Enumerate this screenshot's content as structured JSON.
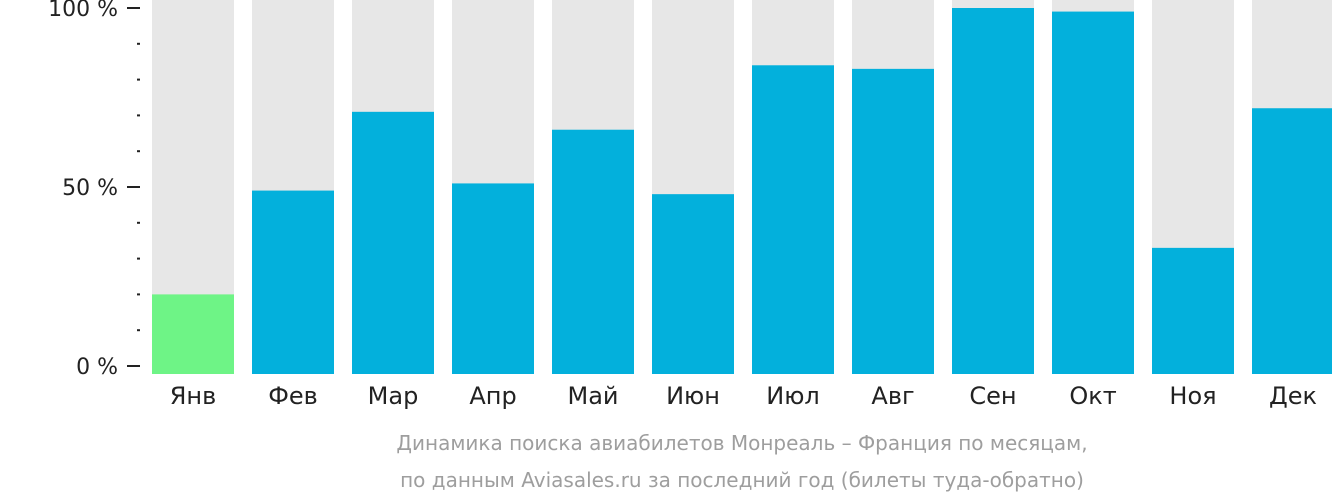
{
  "chart_data": {
    "type": "bar",
    "categories": [
      "Янв",
      "Фев",
      "Мар",
      "Апр",
      "Май",
      "Июн",
      "Июл",
      "Авг",
      "Сен",
      "Окт",
      "Ноя",
      "Дек"
    ],
    "values": [
      20,
      49,
      71,
      51,
      66,
      48,
      84,
      83,
      100,
      99,
      33,
      72
    ],
    "ylim": [
      0,
      100
    ],
    "yticks": [
      {
        "value": 0,
        "label": "0 %"
      },
      {
        "value": 50,
        "label": "50 %"
      },
      {
        "value": 100,
        "label": "100 %"
      }
    ],
    "minor_tick_step": 10,
    "highlight_index": 0,
    "colors": {
      "bar": "#03b0dc",
      "highlight": "#6ef486",
      "background_bar": "#e7e7e7",
      "tick_text": "#222222",
      "axis": "#222222"
    },
    "caption": [
      "Динамика поиска авиабилетов Монреаль – Франция по месяцам,",
      "по данным Aviasales.ru за последний год (билеты туда-обратно)"
    ]
  }
}
